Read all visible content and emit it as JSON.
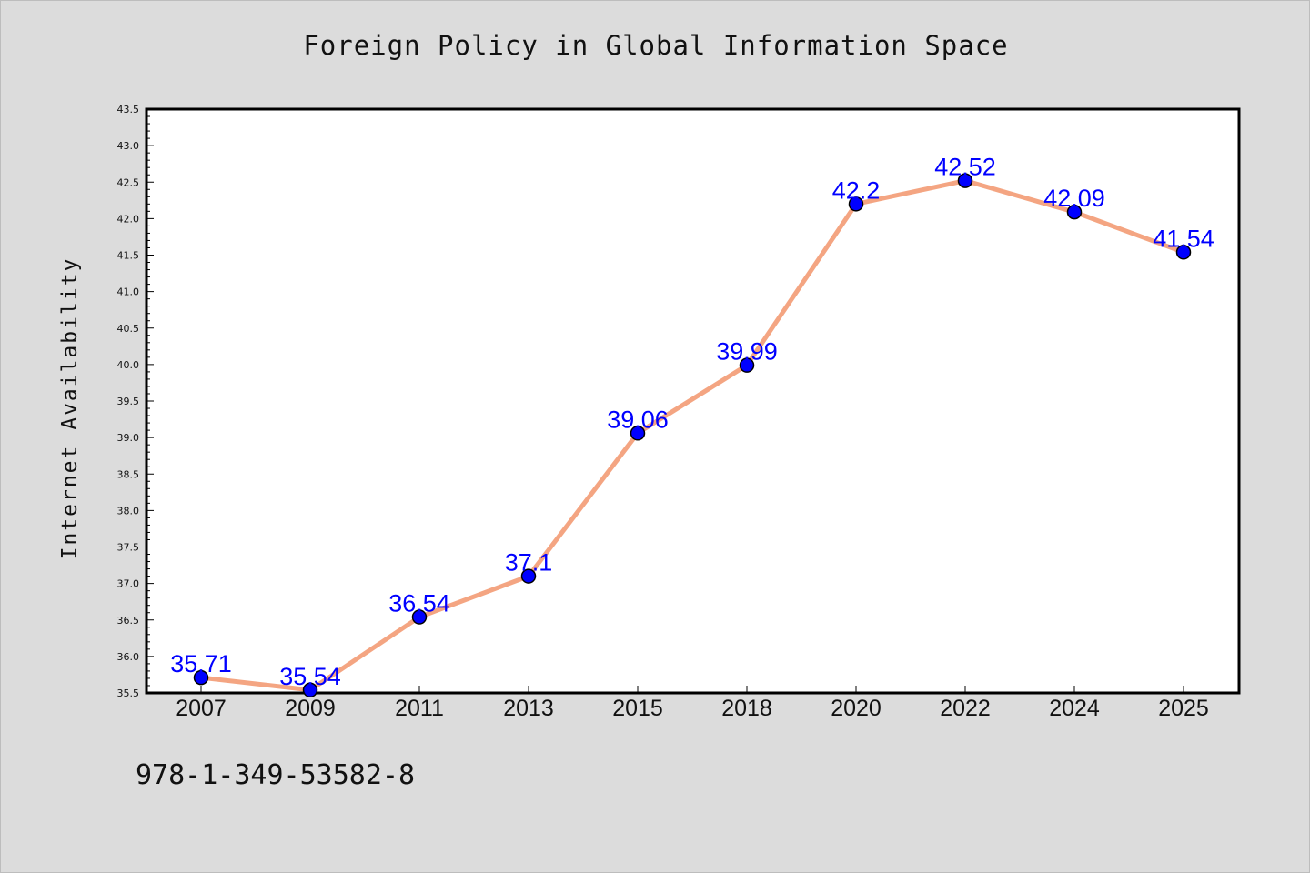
{
  "chart_data": {
    "type": "line",
    "title": "Foreign Policy in Global Information Space",
    "xlabel": "",
    "ylabel": "Internet Availability",
    "categories": [
      "2007",
      "2009",
      "2011",
      "2013",
      "2015",
      "2018",
      "2020",
      "2022",
      "2024",
      "2025"
    ],
    "series": [
      {
        "values": [
          35.71,
          35.54,
          36.54,
          37.1,
          39.06,
          39.99,
          42.2,
          42.52,
          42.09,
          41.54
        ]
      }
    ],
    "data_labels": [
      "35.71",
      "35.54",
      "36.54",
      "37.1",
      "39.06",
      "39.99",
      "42.2",
      "42.52",
      "42.09",
      "41.54"
    ],
    "ylim": [
      35.5,
      43.5
    ],
    "yticks": [
      "35.5",
      "36.0",
      "36.5",
      "37.0",
      "37.5",
      "38.0",
      "38.5",
      "39.0",
      "39.5",
      "40.0",
      "40.5",
      "41.0",
      "41.5",
      "42.0",
      "42.5",
      "43.0",
      "43.5"
    ],
    "grid": false,
    "colors": {
      "line": "#f4a582",
      "marker_fill": "#0000ff",
      "marker_edge": "#000000",
      "data_label": "#0000ff",
      "background": "#dcdcdc",
      "plot_background": "#ffffff"
    }
  },
  "footer": {
    "code": "978-1-349-53582-8"
  }
}
